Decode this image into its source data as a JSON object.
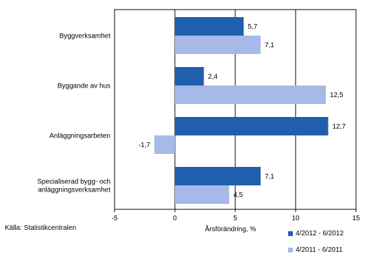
{
  "chart_data": {
    "type": "bar",
    "orientation": "horizontal",
    "categories": [
      "Byggverksamhet",
      "Byggande av hus",
      "Anläggningsarbeten",
      "Specialiserad bygg- och anläggningsverksamhet"
    ],
    "category_lines": [
      [
        "Byggverksamhet"
      ],
      [
        "Byggande av hus"
      ],
      [
        "Anläggningsarbeten"
      ],
      [
        "Specialiserad bygg- och",
        "anläggningsverksamhet"
      ]
    ],
    "series": [
      {
        "name": "4/2012 - 6/2012",
        "color": "#1f5fae",
        "values": [
          5.7,
          2.4,
          12.7,
          7.1
        ],
        "labels": [
          "5,7",
          "2,4",
          "12,7",
          "7,1"
        ]
      },
      {
        "name": "4/2011 - 6/2011",
        "color": "#a6b9e8",
        "values": [
          7.1,
          12.5,
          -1.7,
          4.5
        ],
        "labels": [
          "7,1",
          "12,5",
          "-1,7",
          "4,5"
        ]
      }
    ],
    "xlim": [
      -5,
      15
    ],
    "xticks": [
      -5,
      0,
      5,
      10,
      15
    ],
    "xtick_labels": [
      "-5",
      "0",
      "5",
      "10",
      "15"
    ],
    "xlabel": "Årsförändring, %",
    "grid": "vertical major lines",
    "legend_position": "bottom-right"
  },
  "source": "Källa: Statistikcentralen"
}
